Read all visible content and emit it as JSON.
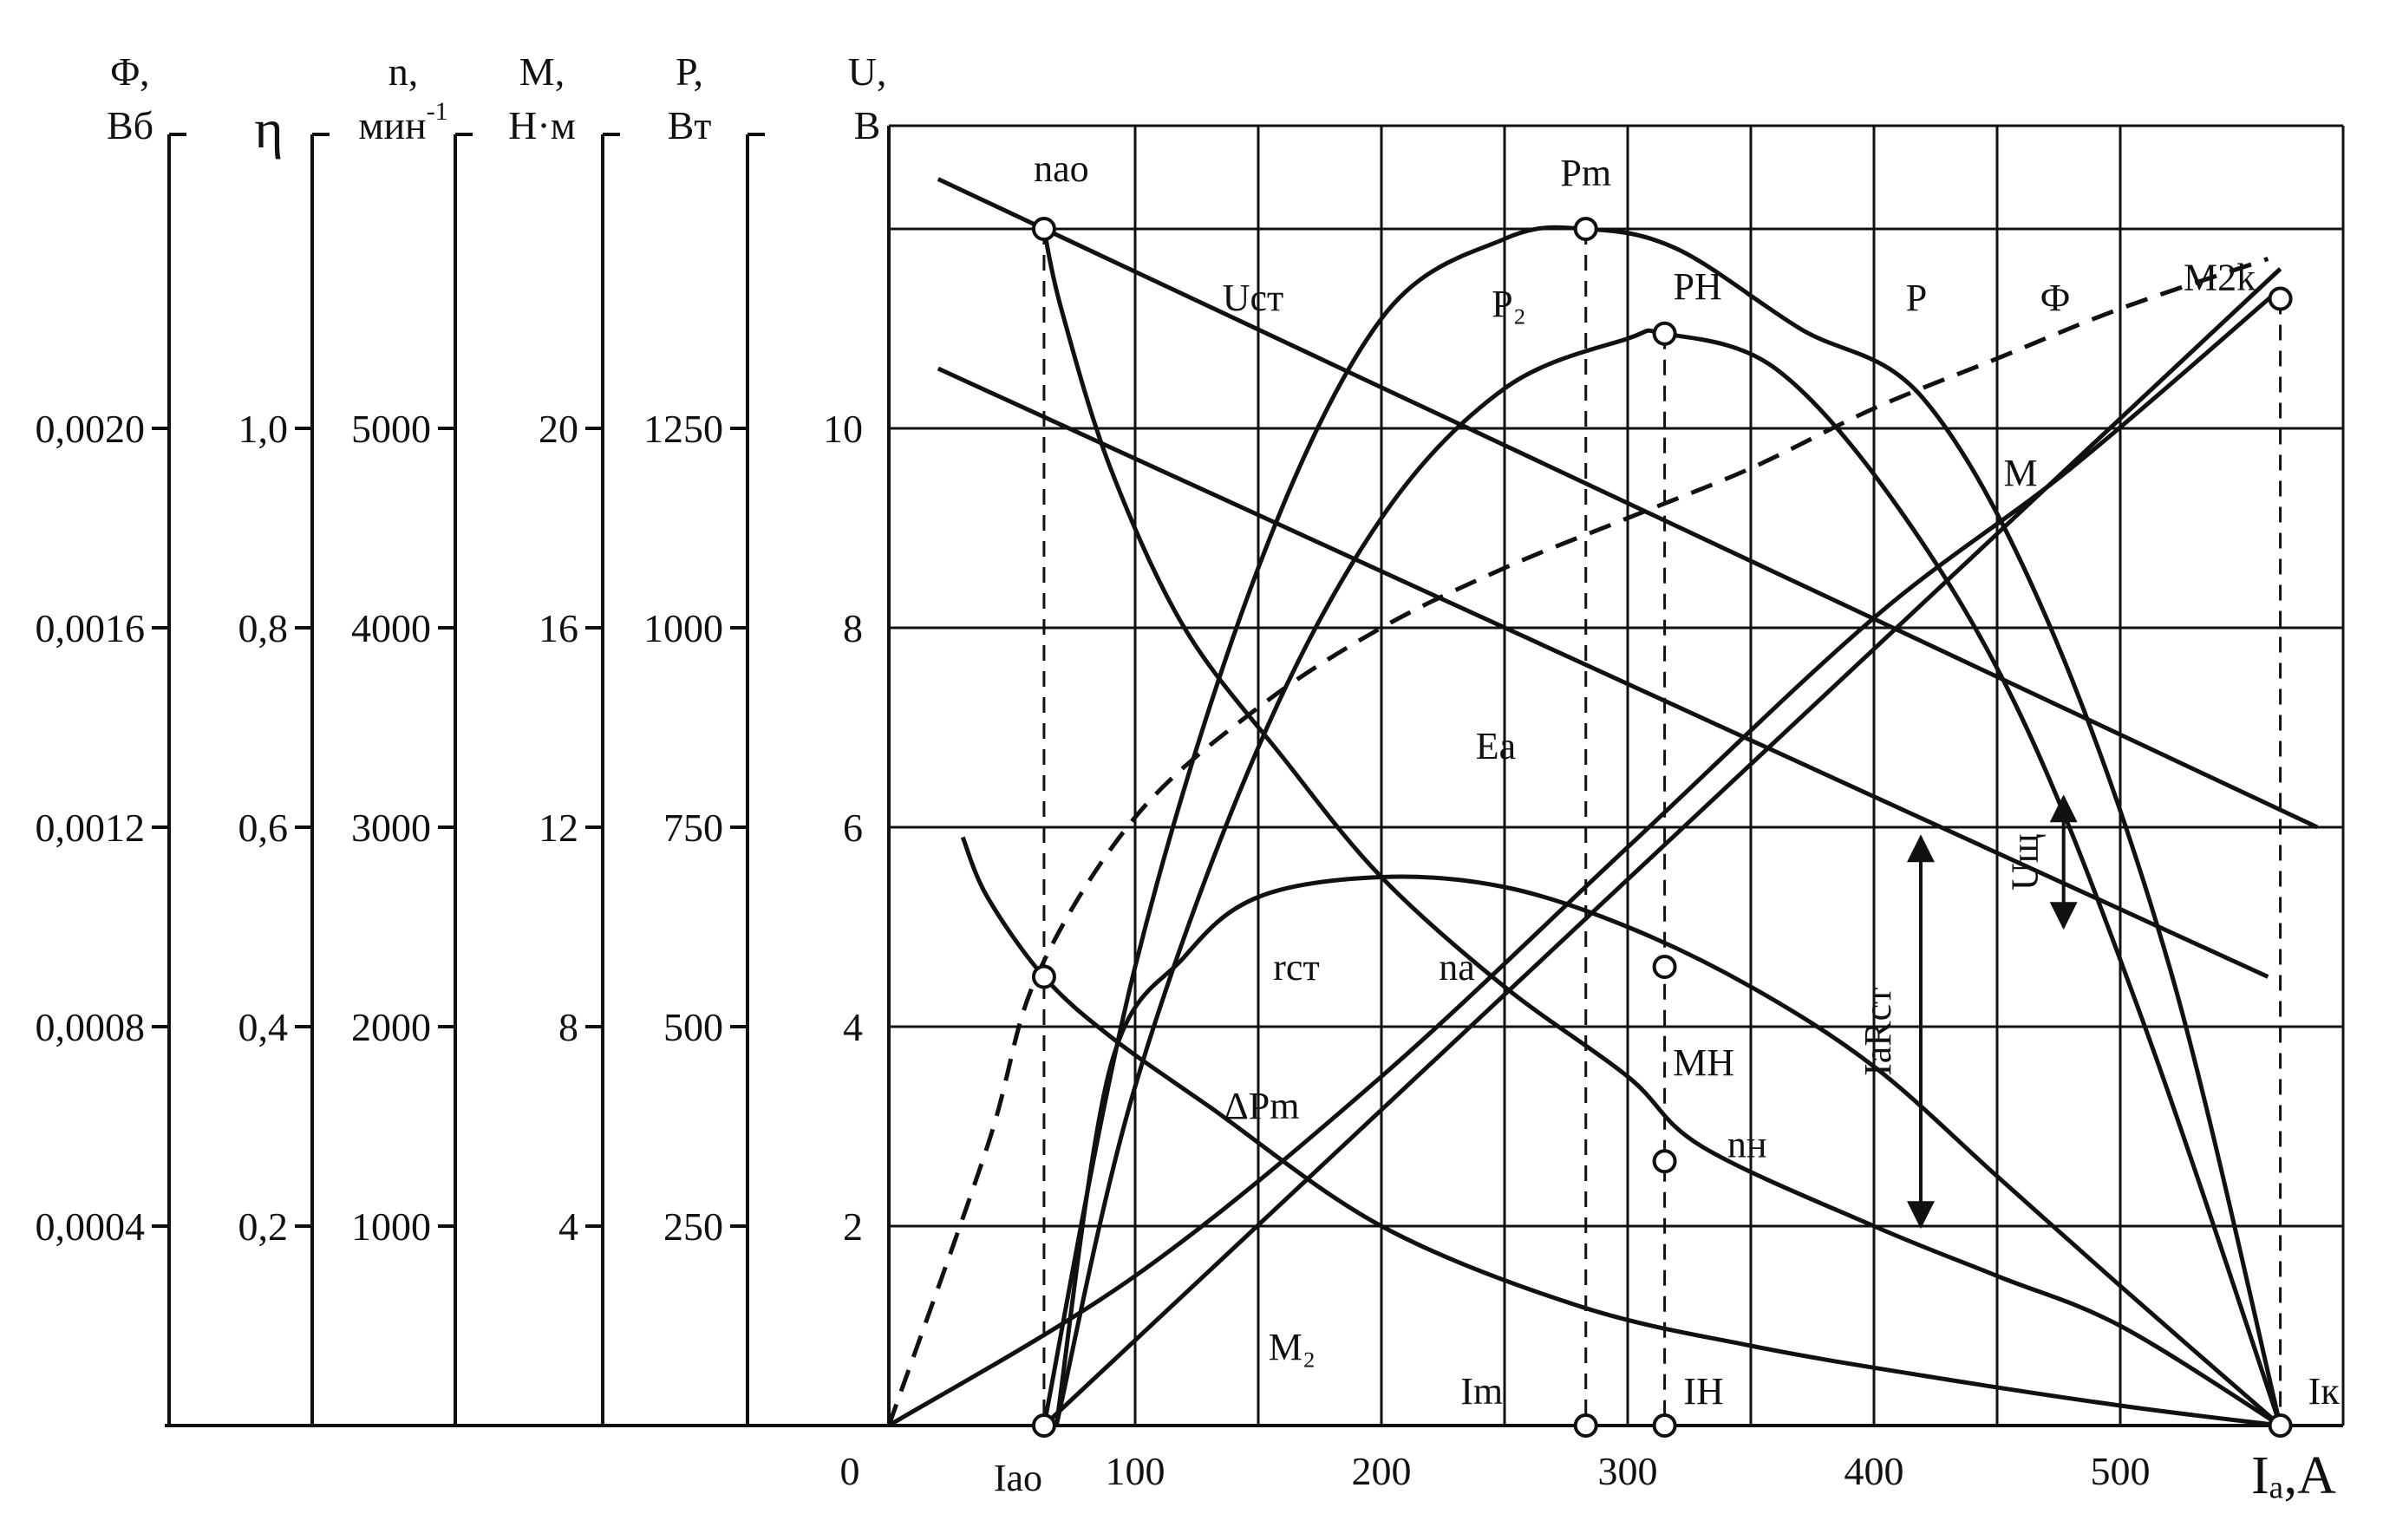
{
  "chart_data": {
    "type": "line",
    "xlabel": "Iₐ,A",
    "x_ticks": [
      "0",
      "100",
      "200",
      "300",
      "400",
      "500"
    ],
    "xlim": [
      0,
      570
    ],
    "u_axis": {
      "name": "U,",
      "unit": "B",
      "ticks": [
        "2",
        "4",
        "6",
        "8",
        "10"
      ]
    },
    "secondary_axes": [
      {
        "name": "Φ,",
        "unit": "Вб",
        "ticks": [
          "0,0004",
          "0,0008",
          "0,0012",
          "0,0016",
          "0,0020"
        ]
      },
      {
        "name": "η",
        "unit": "",
        "ticks": [
          "0,2",
          "0,4",
          "0,6",
          "0,8",
          "1,0"
        ]
      },
      {
        "name": "n,",
        "unit": "мин",
        "unit_sup": "-1",
        "ticks": [
          "1000",
          "2000",
          "3000",
          "4000",
          "5000"
        ]
      },
      {
        "name": "M,",
        "unit": "Н·м",
        "ticks": [
          "4",
          "8",
          "12",
          "16",
          "20"
        ]
      },
      {
        "name": "P,",
        "unit": "Вт",
        "ticks": [
          "250",
          "500",
          "750",
          "1000",
          "1250"
        ]
      }
    ],
    "series": [
      {
        "name": "Uст",
        "style": "solid",
        "x": [
          20,
          580
        ],
        "y": [
          12.5,
          6.0
        ]
      },
      {
        "name": "Eа",
        "style": "solid",
        "x": [
          20,
          560
        ],
        "y": [
          10.6,
          4.5
        ]
      },
      {
        "name": "Ф",
        "style": "dashed",
        "x": [
          0,
          40,
          60,
          100,
          150,
          200,
          250,
          300,
          350,
          400,
          450,
          500,
          560
        ],
        "y": [
          0,
          2.8,
          4.5,
          6.1,
          7.2,
          8.0,
          8.6,
          9.1,
          9.6,
          10.2,
          10.7,
          11.2,
          11.7
        ]
      },
      {
        "name": "nа",
        "style": "solid",
        "x": [
          63,
          70,
          90,
          120,
          160,
          200,
          250,
          300,
          330,
          400,
          450,
          500,
          565
        ],
        "y": [
          12.0,
          11.2,
          9.6,
          8.0,
          6.7,
          5.5,
          4.4,
          3.5,
          2.8,
          2.0,
          1.5,
          1.0,
          0
        ]
      },
      {
        "name": "P",
        "style": "solid",
        "x": [
          63,
          100,
          150,
          200,
          250,
          283,
          320,
          370,
          420,
          470,
          520,
          565
        ],
        "y": [
          0,
          4.6,
          8.6,
          11.1,
          11.9,
          12.0,
          11.8,
          11.0,
          10.3,
          8.1,
          4.6,
          0
        ]
      },
      {
        "name": "P₂",
        "style": "solid",
        "x": [
          68,
          100,
          150,
          200,
          250,
          300,
          315,
          360,
          410,
          460,
          510,
          565
        ],
        "y": [
          0,
          3.4,
          6.8,
          9.1,
          10.4,
          10.9,
          10.95,
          10.6,
          9.2,
          7.1,
          4.0,
          0
        ]
      },
      {
        "name": "M",
        "style": "solid",
        "x": [
          63,
          565
        ],
        "y": [
          0,
          11.6
        ]
      },
      {
        "name": "M₂",
        "style": "solid",
        "x": [
          0,
          100,
          200,
          300,
          400,
          480,
          565
        ],
        "y": [
          0,
          1.5,
          3.5,
          5.8,
          8.1,
          9.6,
          11.4
        ]
      },
      {
        "name": "rст",
        "style": "solid",
        "x": [
          68,
          90,
          120,
          150,
          200,
          250,
          300,
          350,
          400,
          450,
          500,
          565
        ],
        "y": [
          0,
          3.6,
          4.7,
          5.3,
          5.5,
          5.4,
          5.0,
          4.4,
          3.6,
          2.5,
          1.4,
          0
        ]
      },
      {
        "name": "ΔPm",
        "style": "solid",
        "x": [
          30,
          40,
          63,
          90,
          130,
          200,
          280,
          350,
          420,
          500,
          565
        ],
        "y": [
          5.9,
          5.3,
          4.5,
          3.9,
          3.2,
          2.0,
          1.2,
          0.8,
          0.5,
          0.2,
          0
        ]
      }
    ],
    "points": [
      {
        "label": "nао",
        "x": 63,
        "y": 12.0
      },
      {
        "label": "Pm",
        "x": 283,
        "y": 12.0
      },
      {
        "label": "PН",
        "x": 315,
        "y": 10.95
      },
      {
        "label": "MН",
        "x": 315,
        "y": 4.6
      },
      {
        "label": "nн",
        "x": 315,
        "y": 2.65
      },
      {
        "label": "M2k",
        "x": 565,
        "y": 11.3
      },
      {
        "label": "Iао",
        "x": 63,
        "y": 0
      },
      {
        "label": "Im",
        "x": 283,
        "y": 0
      },
      {
        "label": "IН",
        "x": 315,
        "y": 0
      },
      {
        "label": "Iк",
        "x": 565,
        "y": 0
      },
      {
        "label": "",
        "x": 63,
        "y": 4.5
      }
    ],
    "annotations": [
      "Uщ",
      "IaRст"
    ],
    "grid": true
  }
}
